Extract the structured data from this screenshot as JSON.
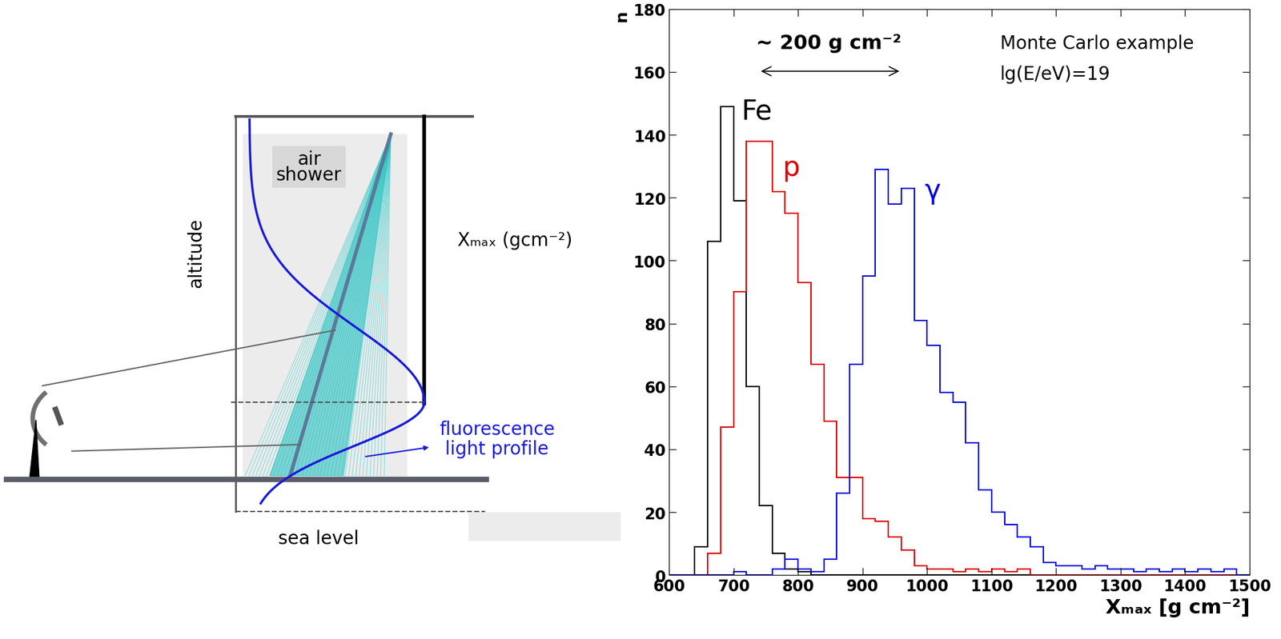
{
  "diagram": {
    "shower_label": "air\nshower",
    "axis_label": "altitude",
    "xmax_label": "Xₘₐₓ (gcm⁻²)",
    "profile_label": "fluorescence\nlight profile",
    "ground_label": "sea level"
  },
  "chart_data": {
    "type": "histogram",
    "bins": [
      600,
      620,
      640,
      660,
      680,
      700,
      720,
      740,
      760,
      780,
      800,
      820,
      840,
      860,
      880,
      900,
      920,
      940,
      960,
      980,
      1000,
      1020,
      1040,
      1060,
      1080,
      1100,
      1120,
      1140,
      1160,
      1180,
      1200,
      1220,
      1240,
      1260,
      1280,
      1300,
      1320,
      1340,
      1360,
      1380,
      1400,
      1420,
      1440,
      1460,
      1480,
      1500
    ],
    "series": [
      {
        "name": "Fe",
        "color": "#000000",
        "values": [
          0,
          0,
          9,
          106,
          149,
          119,
          60,
          22,
          7,
          2,
          1,
          0,
          0,
          0,
          0,
          0,
          0,
          0,
          0,
          0,
          0,
          0,
          0,
          0,
          0,
          0,
          0,
          0,
          0,
          0,
          0,
          0,
          0,
          0,
          0,
          0,
          0,
          0,
          0,
          0,
          0,
          0,
          0,
          0,
          0
        ]
      },
      {
        "name": "p",
        "color": "#dd0000",
        "values": [
          0,
          0,
          0,
          7,
          47,
          90,
          138,
          138,
          122,
          115,
          93,
          67,
          49,
          31,
          31,
          18,
          17,
          12,
          8,
          3,
          2,
          2,
          1,
          2,
          1,
          2,
          1,
          2,
          0,
          0,
          0,
          0,
          0,
          0,
          0,
          0,
          0,
          0,
          0,
          0,
          0,
          0,
          0,
          0,
          0
        ]
      },
      {
        "name": "γ",
        "color": "#0000dd",
        "values": [
          0,
          0,
          0,
          0,
          0,
          1,
          0,
          0,
          2,
          5,
          2,
          1,
          5,
          26,
          67,
          95,
          129,
          118,
          123,
          81,
          73,
          58,
          55,
          42,
          27,
          20,
          16,
          12,
          9,
          4,
          3,
          3,
          2,
          3,
          2,
          2,
          1,
          2,
          1,
          2,
          1,
          2,
          1,
          2,
          0
        ]
      }
    ],
    "xlim": [
      600,
      1500
    ],
    "ylim": [
      0,
      180
    ],
    "xticks": [
      600,
      700,
      800,
      900,
      1000,
      1100,
      1200,
      1300,
      1400,
      1500
    ],
    "yticks": [
      0,
      20,
      40,
      60,
      80,
      100,
      120,
      140,
      160,
      180
    ],
    "xlabel": "Xₘₐₓ [g cm⁻²]",
    "ylabel": "n",
    "annotations": [
      "~ 200 g cm⁻²",
      "Monte Carlo example",
      "lg(E/eV)=19"
    ]
  }
}
